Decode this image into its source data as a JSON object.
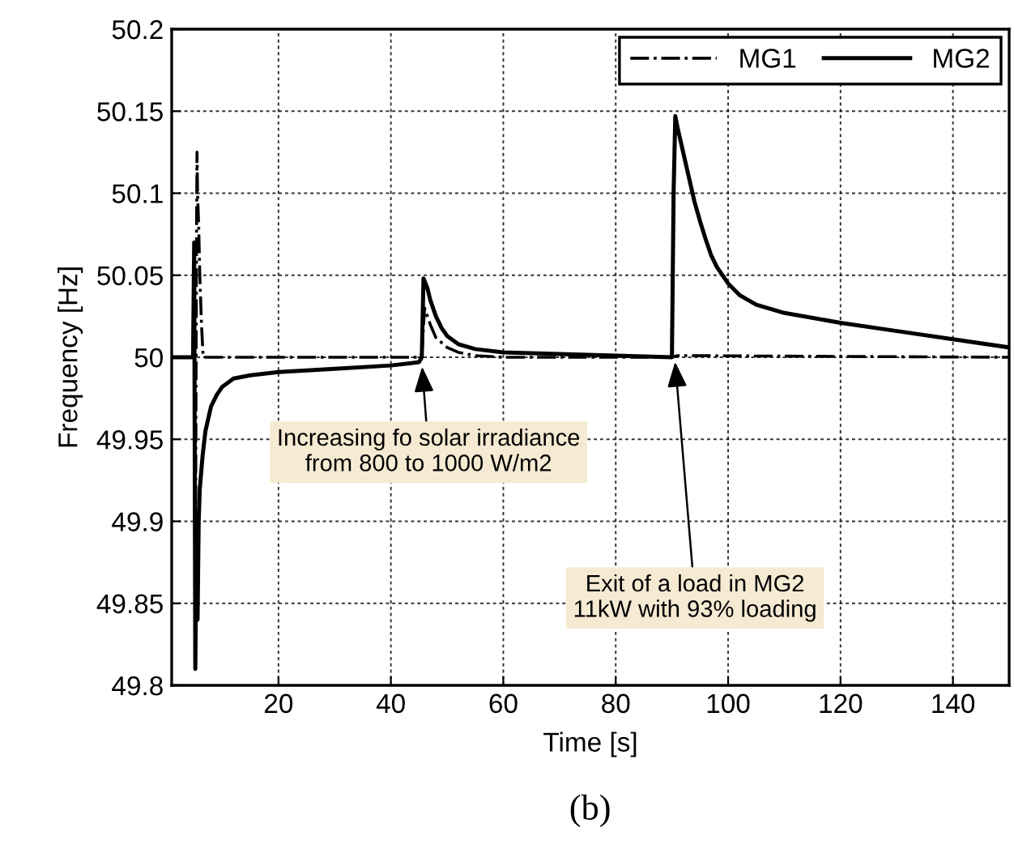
{
  "chart_data": {
    "type": "line",
    "xlabel": "Time [s]",
    "ylabel": "Frequency [Hz]",
    "xlim": [
      1,
      150
    ],
    "ylim": [
      49.8,
      50.2
    ],
    "xticks": [
      20,
      40,
      60,
      80,
      100,
      120,
      140
    ],
    "yticks": [
      {
        "value": 49.8,
        "label": "49.8"
      },
      {
        "value": 49.85,
        "label": "49.85"
      },
      {
        "value": 49.9,
        "label": "49.9"
      },
      {
        "value": 49.95,
        "label": "49.95"
      },
      {
        "value": 50,
        "label": "50"
      },
      {
        "value": 50.05,
        "label": "50.05"
      },
      {
        "value": 50.1,
        "label": "50.1"
      },
      {
        "value": 50.15,
        "label": "50.15"
      },
      {
        "value": 50.2,
        "label": "50.2"
      }
    ],
    "grid": true,
    "legend": "top right",
    "series": [
      {
        "name": "MG1",
        "color": "#000000",
        "line_style": "dashdot",
        "x": [
          1,
          4.8,
          5.0,
          5.2,
          5.4,
          5.5,
          5.6,
          5.8,
          6.0,
          6.3,
          6.6,
          10,
          45,
          45.5,
          46,
          47,
          48,
          50,
          52,
          55,
          60,
          90,
          91,
          150
        ],
        "values": [
          50,
          50,
          50.02,
          49.84,
          50.06,
          50.125,
          50.1,
          50.08,
          50.05,
          50.02,
          50,
          50,
          50,
          50.002,
          50.03,
          50.02,
          50.012,
          50.006,
          50.003,
          50.001,
          50,
          50,
          50.001,
          50
        ]
      },
      {
        "name": "MG2",
        "color": "#000000",
        "line_style": "solid",
        "x": [
          1,
          4.8,
          5.0,
          5.2,
          5.4,
          5.6,
          5.8,
          6.0,
          6.5,
          7,
          8,
          9,
          10,
          12,
          15,
          20,
          30,
          40,
          45,
          45.5,
          45.8,
          46.5,
          47,
          48,
          49,
          50,
          52,
          55,
          60,
          70,
          80,
          90,
          90.3,
          90.6,
          91,
          92,
          93,
          94,
          95,
          96,
          97,
          98,
          100,
          102,
          105,
          110,
          120,
          130,
          140,
          150
        ],
        "values": [
          50,
          50,
          50.07,
          49.81,
          49.89,
          49.84,
          49.9,
          49.92,
          49.94,
          49.955,
          49.97,
          49.977,
          49.982,
          49.987,
          49.989,
          49.991,
          49.993,
          49.995,
          49.997,
          50.0,
          50.048,
          50.042,
          50.035,
          50.025,
          50.018,
          50.013,
          50.008,
          50.005,
          50.003,
          50.002,
          50.001,
          50.0,
          50.1,
          50.147,
          50.14,
          50.125,
          50.11,
          50.095,
          50.083,
          50.072,
          50.062,
          50.055,
          50.045,
          50.038,
          50.032,
          50.027,
          50.021,
          50.016,
          50.011,
          50.006
        ]
      }
    ],
    "annotations": [
      {
        "text": "Increasing fo solar irradiance\nfrom 800 to 1000 W/m2",
        "x": 45.5,
        "y": 49.997
      },
      {
        "text": "Exit of a load in MG2\n11kW with 93% loading",
        "x": 90.5,
        "y": 50.0
      },
      "(b)"
    ]
  }
}
